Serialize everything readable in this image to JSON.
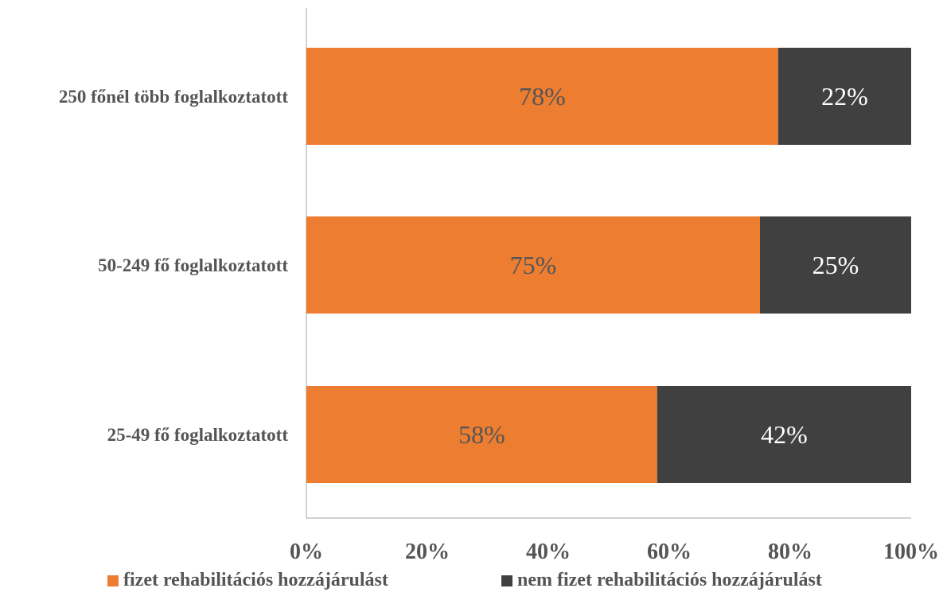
{
  "chart_data": {
    "type": "bar",
    "orientation": "horizontal",
    "stacked": true,
    "categories": [
      "250 főnél több foglalkoztatott",
      "50-249 fő foglalkoztatott",
      "25-49 fő foglalkoztatott"
    ],
    "series": [
      {
        "name": "fizet rehabilitációs hozzájárulást",
        "values": [
          78,
          75,
          58
        ],
        "labels": [
          "78%",
          "75%",
          "58%"
        ],
        "color": "#ED7D31",
        "label_color": "#555555"
      },
      {
        "name": "nem fizet rehabilitációs hozzájárulást",
        "values": [
          22,
          25,
          42
        ],
        "labels": [
          "22%",
          "25%",
          "42%"
        ],
        "color": "#404040",
        "label_color": "#ffffff"
      }
    ],
    "x_ticks": [
      "0%",
      "20%",
      "40%",
      "60%",
      "80%",
      "100%"
    ],
    "xlim": [
      0,
      100
    ],
    "grid": false,
    "legend_position": "bottom"
  }
}
